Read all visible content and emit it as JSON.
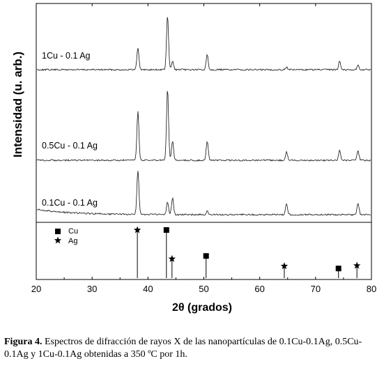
{
  "chart_data": [
    {
      "type": "line",
      "xlim": [
        20,
        80
      ],
      "ylabel": "Intensidad (u. arb.)",
      "series": [
        {
          "name": "1Cu - 0.1 Ag",
          "baseline": 100,
          "peaks": [
            {
              "x": 38.2,
              "h": 32
            },
            {
              "x": 43.5,
              "h": 78
            },
            {
              "x": 44.4,
              "h": 12
            },
            {
              "x": 50.6,
              "h": 22
            },
            {
              "x": 64.8,
              "h": 4
            },
            {
              "x": 74.3,
              "h": 13
            },
            {
              "x": 77.6,
              "h": 6
            }
          ]
        },
        {
          "name": "0.5Cu - 0.1 Ag",
          "baseline": 230,
          "peaks": [
            {
              "x": 38.2,
              "h": 70
            },
            {
              "x": 43.5,
              "h": 102
            },
            {
              "x": 44.4,
              "h": 28
            },
            {
              "x": 50.6,
              "h": 28
            },
            {
              "x": 64.8,
              "h": 12
            },
            {
              "x": 74.3,
              "h": 14
            },
            {
              "x": 77.6,
              "h": 13
            }
          ]
        },
        {
          "name": "0.1Cu - 0.1 Ag",
          "baseline": 308,
          "peaks": [
            {
              "x": 38.2,
              "h": 63
            },
            {
              "x": 43.5,
              "h": 18
            },
            {
              "x": 44.4,
              "h": 24
            },
            {
              "x": 50.6,
              "h": 5
            },
            {
              "x": 64.8,
              "h": 16
            },
            {
              "x": 77.6,
              "h": 16
            }
          ]
        }
      ]
    },
    {
      "type": "reference-lines",
      "xlabel": "2θ (grados)",
      "xlim": [
        20,
        80
      ],
      "xticks": [
        20,
        30,
        40,
        50,
        60,
        70,
        80
      ],
      "legend": [
        {
          "symbol": "square",
          "label": "Cu"
        },
        {
          "symbol": "star",
          "label": "Ag"
        }
      ],
      "series": [
        {
          "name": "Cu",
          "symbol": "square",
          "lines": [
            {
              "x": 43.3,
              "intensity": 100
            },
            {
              "x": 50.4,
              "intensity": 46
            },
            {
              "x": 74.1,
              "intensity": 20
            }
          ]
        },
        {
          "name": "Ag",
          "symbol": "star",
          "lines": [
            {
              "x": 38.1,
              "intensity": 100
            },
            {
              "x": 44.3,
              "intensity": 40
            },
            {
              "x": 64.4,
              "intensity": 25
            },
            {
              "x": 77.4,
              "intensity": 26
            }
          ]
        }
      ]
    }
  ],
  "caption": {
    "label": "Figura 4.",
    "text": "Espectros de difracción de rayos X  de las nanopartículas de 0.1Cu-0.1Ag, 0.5Cu-0.1Ag y 1Cu-0.1Ag obtenidas a 350  ºC por 1h."
  }
}
